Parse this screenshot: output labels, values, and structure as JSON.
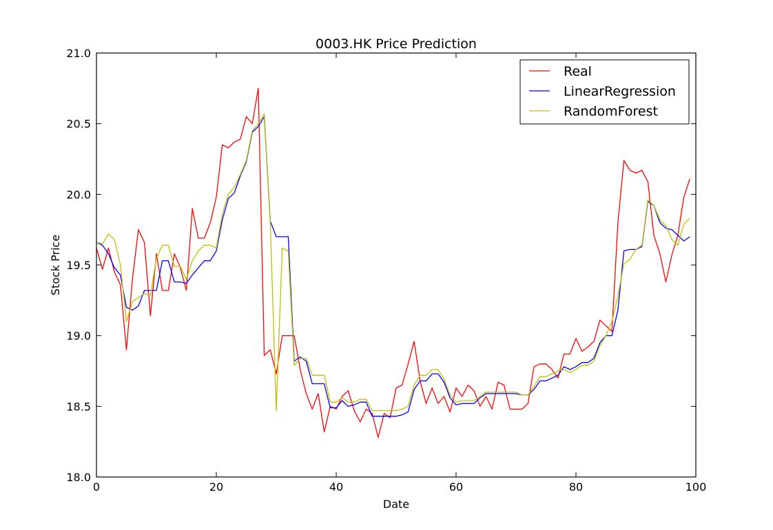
{
  "chart_data": {
    "type": "line",
    "title": "0003.HK Price Prediction",
    "xlabel": "Date",
    "ylabel": "Stock Price",
    "xlim": [
      0,
      100
    ],
    "ylim": [
      18.0,
      21.0
    ],
    "xticks": [
      "0",
      "20",
      "40",
      "60",
      "80",
      "100"
    ],
    "yticks": [
      "18.0",
      "18.5",
      "19.0",
      "19.5",
      "20.0",
      "20.5",
      "21.0"
    ],
    "grid": false,
    "legend_position": "top-right",
    "x": [
      0,
      1,
      2,
      3,
      4,
      5,
      6,
      7,
      8,
      9,
      10,
      11,
      12,
      13,
      14,
      15,
      16,
      17,
      18,
      19,
      20,
      21,
      22,
      23,
      24,
      25,
      26,
      27,
      28,
      29,
      30,
      31,
      32,
      33,
      34,
      35,
      36,
      37,
      38,
      39,
      40,
      41,
      42,
      43,
      44,
      45,
      46,
      47,
      48,
      49,
      50,
      51,
      52,
      53,
      54,
      55,
      56,
      57,
      58,
      59,
      60,
      61,
      62,
      63,
      64,
      65,
      66,
      67,
      68,
      69,
      70,
      71,
      72,
      73,
      74,
      75,
      76,
      77,
      78,
      79,
      80,
      81,
      82,
      83,
      84,
      85,
      86,
      87,
      88,
      89,
      90,
      91,
      92,
      93,
      94,
      95,
      96,
      97,
      98,
      99
    ],
    "series": [
      {
        "name": "Real",
        "color": "#ff0000",
        "values": [
          19.62,
          19.47,
          19.62,
          19.45,
          19.36,
          18.9,
          19.4,
          19.75,
          19.66,
          19.14,
          19.58,
          19.32,
          19.32,
          19.58,
          19.48,
          19.32,
          19.9,
          19.69,
          19.69,
          19.8,
          19.98,
          20.35,
          20.33,
          20.37,
          20.39,
          20.55,
          20.5,
          20.75,
          18.86,
          18.9,
          18.73,
          19.0,
          19.0,
          19.0,
          18.76,
          18.59,
          18.48,
          18.59,
          18.32,
          18.5,
          18.48,
          18.57,
          18.61,
          18.47,
          18.39,
          18.48,
          18.45,
          18.28,
          18.45,
          18.42,
          18.63,
          18.65,
          18.8,
          18.96,
          18.68,
          18.52,
          18.63,
          18.52,
          18.57,
          18.46,
          18.63,
          18.57,
          18.65,
          18.61,
          18.5,
          18.57,
          18.48,
          18.67,
          18.65,
          18.48,
          18.48,
          18.48,
          18.52,
          18.78,
          18.8,
          18.8,
          18.76,
          18.7,
          18.87,
          18.87,
          18.98,
          18.89,
          18.92,
          18.96,
          19.11,
          19.07,
          19.03,
          19.8,
          20.24,
          20.17,
          20.15,
          20.17,
          20.09,
          19.71,
          19.58,
          19.38,
          19.57,
          19.71,
          19.98,
          20.11
        ]
      },
      {
        "name": "LinearRegression",
        "color": "#0000ff",
        "values": [
          19.66,
          19.64,
          19.58,
          19.48,
          19.43,
          19.2,
          19.18,
          19.21,
          19.32,
          19.32,
          19.32,
          19.53,
          19.53,
          19.38,
          19.38,
          19.37,
          19.43,
          19.48,
          19.53,
          19.53,
          19.6,
          19.82,
          19.97,
          20.01,
          20.13,
          20.23,
          20.44,
          20.48,
          20.55,
          19.81,
          19.7,
          19.7,
          19.7,
          18.82,
          18.85,
          18.82,
          18.66,
          18.66,
          18.66,
          18.49,
          18.49,
          18.54,
          18.5,
          18.51,
          18.53,
          18.53,
          18.43,
          18.43,
          18.43,
          18.43,
          18.43,
          18.44,
          18.46,
          18.62,
          18.68,
          18.68,
          18.73,
          18.73,
          18.67,
          18.56,
          18.51,
          18.52,
          18.52,
          18.52,
          18.56,
          18.59,
          18.59,
          18.59,
          18.59,
          18.59,
          18.59,
          18.58,
          18.58,
          18.62,
          18.68,
          18.68,
          18.7,
          18.72,
          18.78,
          18.76,
          18.78,
          18.81,
          18.81,
          18.84,
          18.95,
          19.0,
          19.0,
          19.18,
          19.6,
          19.61,
          19.61,
          19.63,
          19.95,
          19.92,
          19.8,
          19.76,
          19.75,
          19.71,
          19.67,
          19.7
        ]
      },
      {
        "name": "RandomForest",
        "color": "#bfbf00",
        "values": [
          19.66,
          19.65,
          19.72,
          19.68,
          19.5,
          19.1,
          19.24,
          19.27,
          19.3,
          19.28,
          19.55,
          19.64,
          19.64,
          19.49,
          19.49,
          19.4,
          19.53,
          19.6,
          19.64,
          19.64,
          19.62,
          19.86,
          20.0,
          20.05,
          20.14,
          20.24,
          20.45,
          20.5,
          20.57,
          19.8,
          18.47,
          19.62,
          19.6,
          18.79,
          18.84,
          18.84,
          18.72,
          18.72,
          18.72,
          18.53,
          18.53,
          18.56,
          18.53,
          18.53,
          18.55,
          18.55,
          18.47,
          18.47,
          18.47,
          18.47,
          18.47,
          18.48,
          18.5,
          18.65,
          18.72,
          18.72,
          18.76,
          18.76,
          18.69,
          18.58,
          18.53,
          18.54,
          18.54,
          18.54,
          18.57,
          18.6,
          18.6,
          18.6,
          18.6,
          18.6,
          18.6,
          18.58,
          18.58,
          18.64,
          18.71,
          18.71,
          18.73,
          18.75,
          18.76,
          18.74,
          18.76,
          18.79,
          18.79,
          18.82,
          18.93,
          19.0,
          19.1,
          19.28,
          19.51,
          19.54,
          19.61,
          19.64,
          19.96,
          19.92,
          19.82,
          19.78,
          19.68,
          19.64,
          19.79,
          19.83
        ]
      }
    ]
  }
}
